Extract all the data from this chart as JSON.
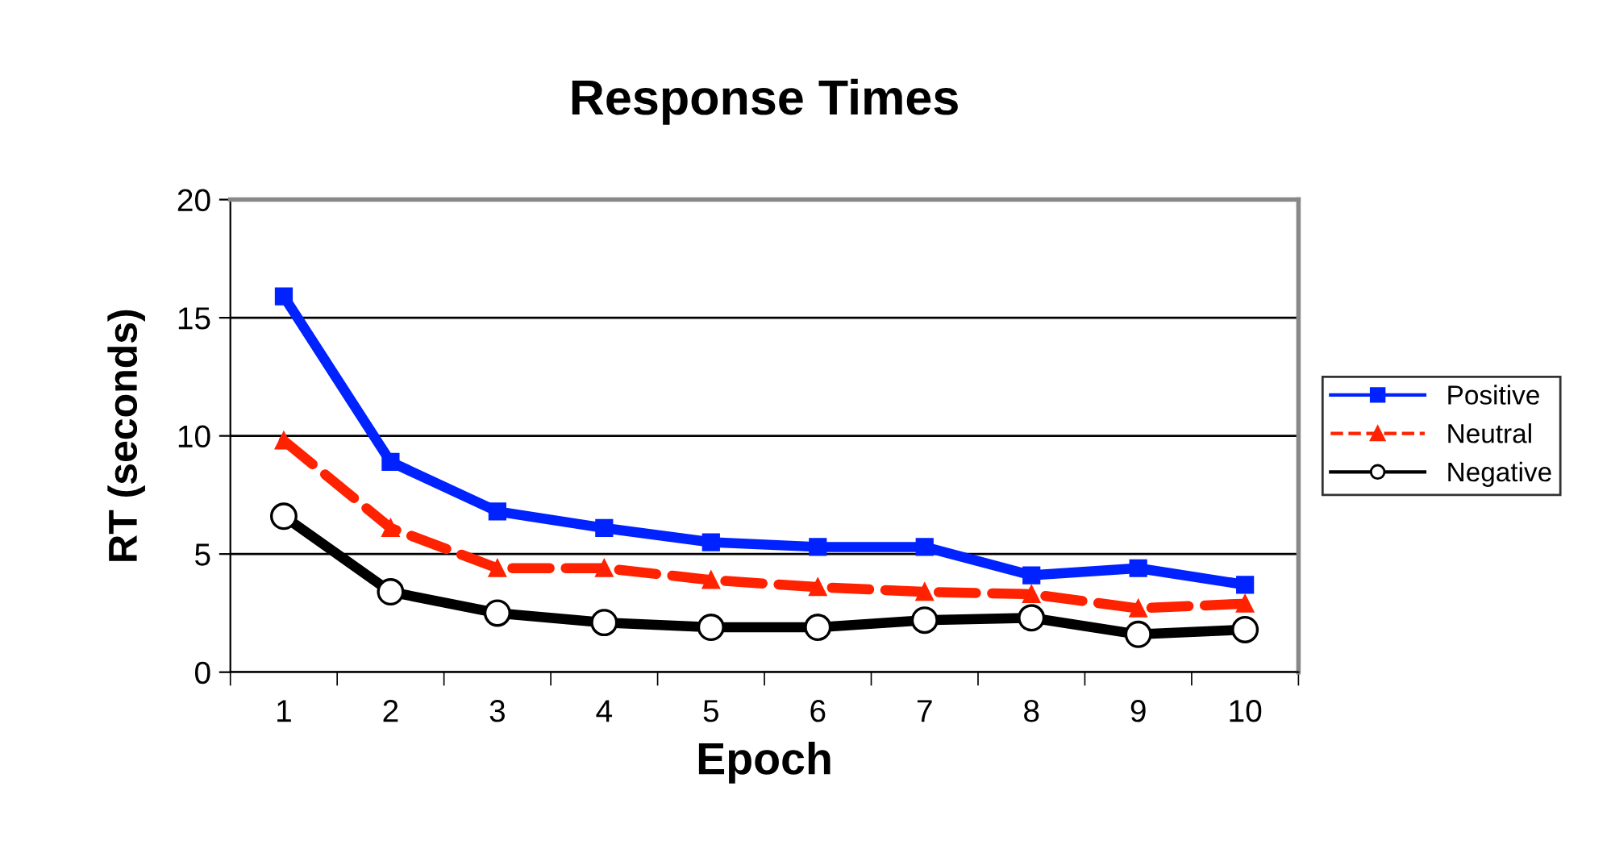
{
  "chart_data": {
    "type": "line",
    "title": "Response Times",
    "xlabel": "Epoch",
    "ylabel": "RT (seconds)",
    "categories": [
      "1",
      "2",
      "3",
      "4",
      "5",
      "6",
      "7",
      "8",
      "9",
      "10"
    ],
    "series": [
      {
        "name": "Positive",
        "color": "#0022ff",
        "marker": "square",
        "line_style": "solid",
        "values": [
          15.9,
          8.9,
          6.8,
          6.1,
          5.5,
          5.3,
          5.3,
          4.1,
          4.4,
          3.7
        ]
      },
      {
        "name": "Neutral",
        "color": "#ff2200",
        "marker": "triangle",
        "line_style": "dashed",
        "values": [
          9.8,
          6.1,
          4.4,
          4.4,
          3.9,
          3.6,
          3.4,
          3.3,
          2.7,
          2.9
        ]
      },
      {
        "name": "Negative",
        "color": "#000000",
        "marker": "circle",
        "line_style": "solid",
        "values": [
          6.6,
          3.4,
          2.5,
          2.1,
          1.9,
          1.9,
          2.2,
          2.3,
          1.6,
          1.8
        ]
      }
    ],
    "ylim": [
      0,
      20
    ],
    "yticks": [
      0,
      5,
      10,
      15,
      20
    ],
    "grid": "y",
    "legend": "right"
  }
}
